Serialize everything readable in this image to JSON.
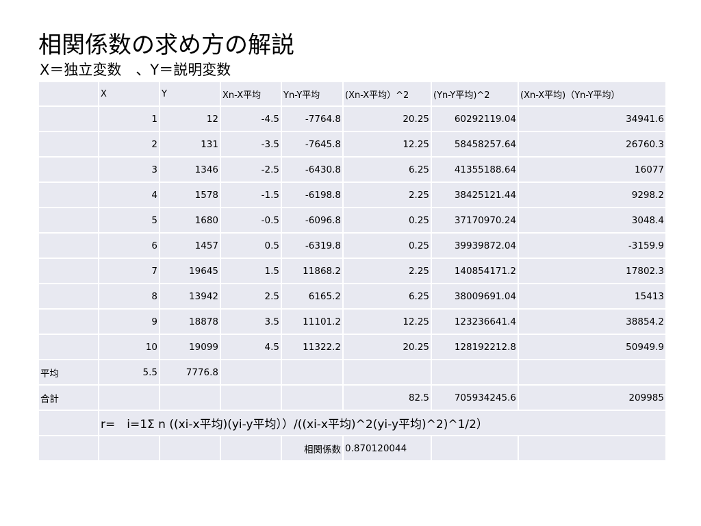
{
  "title": "相関係数の求め方の解説",
  "subtitle": "X＝独立変数　、Y＝説明変数",
  "table": {
    "headers": [
      "",
      "X",
      "Y",
      "Xn-X平均",
      "Yn-Y平均",
      "(Xn-X平均）^2",
      "(Yn-Y平均)^2",
      "(Xn-X平均)（Yn-Y平均）"
    ],
    "rows": [
      [
        "",
        "1",
        "12",
        "-4.5",
        "-7764.8",
        "20.25",
        "60292119.04",
        "34941.6"
      ],
      [
        "",
        "2",
        "131",
        "-3.5",
        "-7645.8",
        "12.25",
        "58458257.64",
        "26760.3"
      ],
      [
        "",
        "3",
        "1346",
        "-2.5",
        "-6430.8",
        "6.25",
        "41355188.64",
        "16077"
      ],
      [
        "",
        "4",
        "1578",
        "-1.5",
        "-6198.8",
        "2.25",
        "38425121.44",
        "9298.2"
      ],
      [
        "",
        "5",
        "1680",
        "-0.5",
        "-6096.8",
        "0.25",
        "37170970.24",
        "3048.4"
      ],
      [
        "",
        "6",
        "1457",
        "0.5",
        "-6319.8",
        "0.25",
        "39939872.04",
        "-3159.9"
      ],
      [
        "",
        "7",
        "19645",
        "1.5",
        "11868.2",
        "2.25",
        "140854171.2",
        "17802.3"
      ],
      [
        "",
        "8",
        "13942",
        "2.5",
        "6165.2",
        "6.25",
        "38009691.04",
        "15413"
      ],
      [
        "",
        "9",
        "18878",
        "3.5",
        "11101.2",
        "12.25",
        "123236641.4",
        "38854.2"
      ],
      [
        "",
        "10",
        "19099",
        "4.5",
        "11322.2",
        "20.25",
        "128192212.8",
        "50949.9"
      ],
      [
        "平均",
        "5.5",
        "7776.8",
        "",
        "",
        "",
        "",
        ""
      ],
      [
        "合計",
        "",
        "",
        "",
        "",
        "82.5",
        "705934245.6",
        "209985"
      ]
    ],
    "formula": "r=　i=1Σ n ((xi-x平均)(yi-y平均））/((xi-x平均)^2(yi-y平均)^2)^1/2）",
    "coef_label": "相関係数",
    "coef_value": "0.870120044"
  }
}
